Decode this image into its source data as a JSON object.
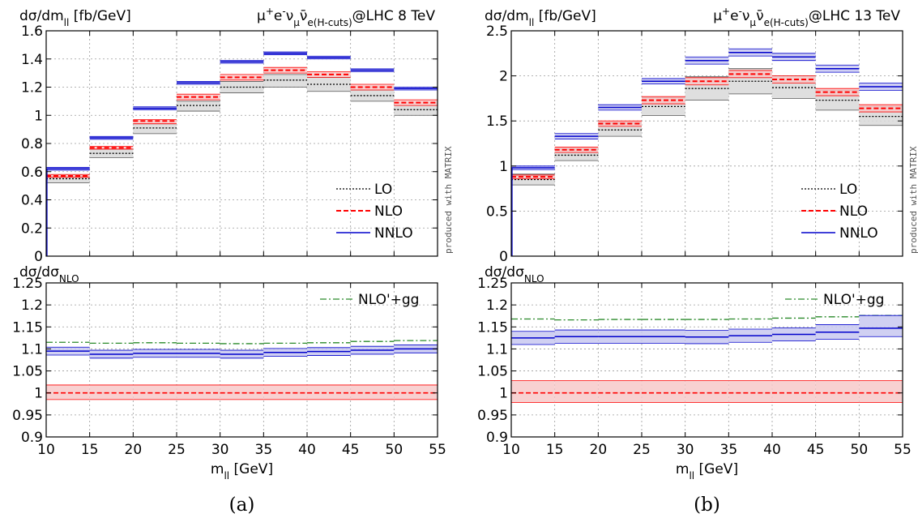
{
  "figure": {
    "bins": [
      10,
      15,
      20,
      25,
      30,
      35,
      40,
      45,
      50,
      55
    ],
    "x_tick_labels": [
      "10",
      "15",
      "20",
      "25",
      "30",
      "35",
      "40",
      "45",
      "50",
      "55"
    ],
    "x_axis_label_base": "m",
    "x_axis_label_sub": "ll",
    "x_axis_label_unit": " [GeV]",
    "main_ylabel_base": "dσ/dm",
    "main_ylabel_sub": "ll",
    "main_ylabel_unit": " [fb/GeV]",
    "ratio_ylabel_base": "dσ/dσ",
    "ratio_ylabel_sub": "NLO",
    "watermark": "produced with MATRIX",
    "process_prefix": "μ",
    "process_sup1": "+",
    "process_e": "e",
    "process_sup2": "-",
    "process_nu": "ν",
    "process_sub_mu": "μ",
    "process_nubar": "ν̄",
    "process_sub_e": "e",
    "process_cuts": "(H-cuts)",
    "legend": {
      "lo": "LO",
      "nlo": "NLO",
      "nnlo": "NNLO",
      "nlo_gg": "NLO'+gg"
    },
    "colors": {
      "lo": "#000000",
      "lo_band": "#d9d9d9",
      "nlo": "#ff0000",
      "nlo_band": "#f7c9c9",
      "nnlo": "#0000cc",
      "nnlo_band": "#c8c8f0",
      "gg": "#2a8a2a"
    }
  },
  "panels": [
    {
      "caption": "(a)",
      "energy_label": "@LHC 8 TeV",
      "main_y_ticks": [
        "0",
        "0.2",
        "0.4",
        "0.6",
        "0.8",
        "1",
        "1.2",
        "1.4",
        "1.6"
      ],
      "ratio_y_ticks": [
        "0.9",
        "0.95",
        "1",
        "1.05",
        "1.1",
        "1.15",
        "1.2",
        "1.25"
      ]
    },
    {
      "caption": "(b)",
      "energy_label": "@LHC 13 TeV",
      "main_y_ticks": [
        "0",
        "0.5",
        "1",
        "1.5",
        "2",
        "2.5"
      ],
      "ratio_y_ticks": [
        "0.9",
        "0.95",
        "1",
        "1.05",
        "1.1",
        "1.15",
        "1.2",
        "1.25"
      ]
    }
  ],
  "chart_data": [
    {
      "type": "step",
      "title": "μ+e-νμν̄e(H-cuts)@LHC 8 TeV",
      "xlabel": "m_ll [GeV]",
      "ylabel": "dσ/dm_ll [fb/GeV]",
      "x_bins": [
        10,
        15,
        20,
        25,
        30,
        35,
        40,
        45,
        50,
        55
      ],
      "ylim": [
        0,
        1.6
      ],
      "grid": true,
      "legend_position": "bottom-right",
      "series": [
        {
          "name": "LO",
          "values": [
            0.55,
            0.73,
            0.91,
            1.07,
            1.2,
            1.25,
            1.22,
            1.14,
            1.04
          ],
          "band_low": [
            0.52,
            0.7,
            0.87,
            1.03,
            1.16,
            1.2,
            1.17,
            1.1,
            1.0
          ],
          "band_high": [
            0.58,
            0.76,
            0.94,
            1.1,
            1.24,
            1.29,
            1.27,
            1.18,
            1.07
          ]
        },
        {
          "name": "NLO",
          "values": [
            0.57,
            0.77,
            0.96,
            1.13,
            1.27,
            1.32,
            1.29,
            1.2,
            1.09
          ],
          "band_low": [
            0.56,
            0.76,
            0.94,
            1.11,
            1.25,
            1.3,
            1.27,
            1.18,
            1.07
          ],
          "band_high": [
            0.58,
            0.78,
            0.97,
            1.15,
            1.29,
            1.34,
            1.31,
            1.22,
            1.11
          ]
        },
        {
          "name": "NNLO",
          "values": [
            0.62,
            0.84,
            1.05,
            1.23,
            1.38,
            1.44,
            1.41,
            1.32,
            1.19
          ],
          "band_low": [
            0.61,
            0.83,
            1.04,
            1.22,
            1.37,
            1.43,
            1.4,
            1.31,
            1.18
          ],
          "band_high": [
            0.63,
            0.85,
            1.06,
            1.24,
            1.39,
            1.45,
            1.42,
            1.33,
            1.2
          ]
        }
      ]
    },
    {
      "type": "step",
      "title": "dσ/dσNLO @LHC 8 TeV",
      "xlabel": "m_ll [GeV]",
      "ylabel": "dσ/dσNLO",
      "x_bins": [
        10,
        15,
        20,
        25,
        30,
        35,
        40,
        45,
        50,
        55
      ],
      "ylim": [
        0.9,
        1.25
      ],
      "grid": true,
      "legend_position": "top-right",
      "series": [
        {
          "name": "NLO'+gg",
          "values": [
            1.115,
            1.113,
            1.114,
            1.113,
            1.112,
            1.113,
            1.114,
            1.117,
            1.119
          ]
        },
        {
          "name": "NNLO",
          "values": [
            1.095,
            1.088,
            1.09,
            1.09,
            1.088,
            1.092,
            1.094,
            1.097,
            1.1
          ],
          "band_low": [
            1.086,
            1.079,
            1.081,
            1.081,
            1.079,
            1.083,
            1.085,
            1.088,
            1.091
          ],
          "band_high": [
            1.104,
            1.097,
            1.099,
            1.099,
            1.097,
            1.101,
            1.103,
            1.106,
            1.109
          ]
        },
        {
          "name": "NLO",
          "values": [
            1.0,
            1.0,
            1.0,
            1.0,
            1.0,
            1.0,
            1.0,
            1.0,
            1.0
          ],
          "band_low": [
            0.985,
            0.985,
            0.985,
            0.985,
            0.985,
            0.985,
            0.985,
            0.985,
            0.985
          ],
          "band_high": [
            1.018,
            1.018,
            1.018,
            1.018,
            1.018,
            1.018,
            1.018,
            1.018,
            1.018
          ]
        }
      ]
    },
    {
      "type": "step",
      "title": "μ+e-νμν̄e(H-cuts)@LHC 13 TeV",
      "xlabel": "m_ll [GeV]",
      "ylabel": "dσ/dm_ll [fb/GeV]",
      "x_bins": [
        10,
        15,
        20,
        25,
        30,
        35,
        40,
        45,
        50,
        55
      ],
      "ylim": [
        0,
        2.5
      ],
      "grid": true,
      "legend_position": "bottom-right",
      "series": [
        {
          "name": "LO",
          "values": [
            0.85,
            1.12,
            1.4,
            1.66,
            1.86,
            1.94,
            1.87,
            1.73,
            1.55
          ],
          "band_low": [
            0.79,
            1.06,
            1.33,
            1.56,
            1.73,
            1.8,
            1.75,
            1.62,
            1.45
          ],
          "band_high": [
            0.91,
            1.19,
            1.48,
            1.76,
            1.99,
            2.08,
            2.0,
            1.84,
            1.66
          ]
        },
        {
          "name": "NLO",
          "values": [
            0.88,
            1.18,
            1.47,
            1.73,
            1.94,
            2.02,
            1.96,
            1.82,
            1.64
          ],
          "band_low": [
            0.86,
            1.15,
            1.44,
            1.69,
            1.9,
            1.98,
            1.92,
            1.78,
            1.6
          ],
          "band_high": [
            0.9,
            1.21,
            1.5,
            1.77,
            1.98,
            2.06,
            2.0,
            1.86,
            1.68
          ]
        },
        {
          "name": "NNLO",
          "values": [
            0.98,
            1.33,
            1.65,
            1.94,
            2.17,
            2.26,
            2.21,
            2.08,
            1.88
          ],
          "band_low": [
            0.96,
            1.3,
            1.62,
            1.91,
            2.13,
            2.22,
            2.17,
            2.04,
            1.84
          ],
          "band_high": [
            1.0,
            1.36,
            1.68,
            1.97,
            2.21,
            2.3,
            2.25,
            2.12,
            1.92
          ]
        }
      ]
    },
    {
      "type": "step",
      "title": "dσ/dσNLO @LHC 13 TeV",
      "xlabel": "m_ll [GeV]",
      "ylabel": "dσ/dσNLO",
      "x_bins": [
        10,
        15,
        20,
        25,
        30,
        35,
        40,
        45,
        50,
        55
      ],
      "ylim": [
        0.9,
        1.25
      ],
      "grid": true,
      "legend_position": "top-right",
      "series": [
        {
          "name": "NLO'+gg",
          "values": [
            1.168,
            1.166,
            1.167,
            1.167,
            1.167,
            1.168,
            1.17,
            1.173,
            1.176
          ]
        },
        {
          "name": "NNLO",
          "values": [
            1.125,
            1.128,
            1.128,
            1.128,
            1.127,
            1.13,
            1.133,
            1.138,
            1.147
          ],
          "band_low": [
            1.11,
            1.113,
            1.113,
            1.113,
            1.112,
            1.115,
            1.118,
            1.122,
            1.128
          ],
          "band_high": [
            1.14,
            1.143,
            1.143,
            1.143,
            1.142,
            1.145,
            1.148,
            1.155,
            1.176
          ]
        },
        {
          "name": "NLO",
          "values": [
            1.0,
            1.0,
            1.0,
            1.0,
            1.0,
            1.0,
            1.0,
            1.0,
            1.0
          ],
          "band_low": [
            0.978,
            0.978,
            0.978,
            0.978,
            0.978,
            0.978,
            0.978,
            0.978,
            0.978
          ],
          "band_high": [
            1.028,
            1.028,
            1.028,
            1.028,
            1.028,
            1.028,
            1.028,
            1.028,
            1.028
          ]
        }
      ]
    }
  ]
}
